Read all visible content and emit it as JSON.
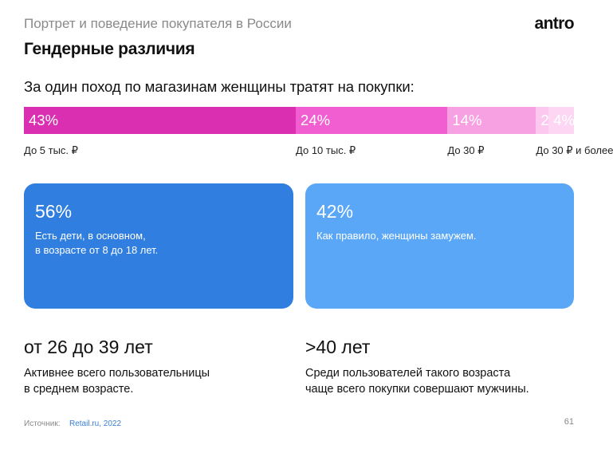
{
  "header": {
    "subtitle": "Портрет и поведение покупателя в России",
    "logo": "antro",
    "title": "Гендерные различия"
  },
  "question": "За один поход по магазинам женщины тратят на покупки:",
  "chart_data": {
    "type": "bar",
    "stacked": true,
    "orientation": "horizontal",
    "title": "За один поход по магазинам женщины тратят на покупки:",
    "unit": "%",
    "segments": [
      {
        "value": 43,
        "label": "43%",
        "category": "До 5 тыс. ₽",
        "color": "#d92fb0"
      },
      {
        "value": 24,
        "label": "24%",
        "category": "До 10 тыс. ₽",
        "color": "#f05ed1"
      },
      {
        "value": 14,
        "label": "14%",
        "category": "До 30 ₽",
        "color": "#f7a1e3"
      },
      {
        "value": 2,
        "label": "2%",
        "category": "До 30 ₽ и более",
        "color": "#fcc8ef"
      },
      {
        "value": 4,
        "label": "4%",
        "category": "",
        "color": "#fcd6f2"
      }
    ]
  },
  "cards": [
    {
      "value": "56%",
      "text": "Есть дети, в основном,\nв возрасте от 8 до 18 лет.",
      "color": "#2f7ee0"
    },
    {
      "value": "42%",
      "text": "Как правило, женщины замужем.",
      "color": "#5aa7f8"
    }
  ],
  "ages": [
    {
      "title": "от 26 до 39 лет",
      "text": "Активнее всего пользовательницы\nв среднем возрасте."
    },
    {
      "title": ">40 лет",
      "text": "Среди пользователей такого возраста\nчаще всего покупки совершают мужчины."
    }
  ],
  "footer": {
    "source_label": "Источник:",
    "source_value": "Retail.ru, 2022",
    "page": "61"
  }
}
